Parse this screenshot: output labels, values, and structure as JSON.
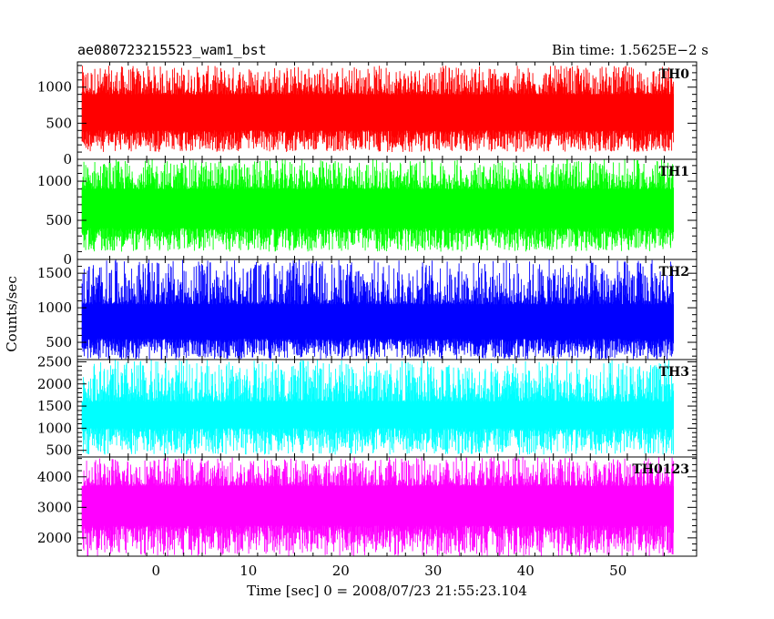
{
  "chart_data": {
    "type": "line",
    "title": "ae080723215523_wam1_bst",
    "subtitle": "Bin time: 1.5625E−2 s",
    "xlabel": "Time [sec] 0 = 2008/07/23 21:55:23.104",
    "ylabel": "Counts/sec",
    "xlim": [
      -8.5,
      58.5
    ],
    "x_ticks": [
      "0",
      "10",
      "20",
      "30",
      "40",
      "50"
    ],
    "x_range_data": [
      -8,
      56
    ],
    "panels": [
      {
        "name": "TH0",
        "color": "#ff0000",
        "ylim": [
          0,
          1350
        ],
        "yticks": [
          0,
          500,
          1000
        ],
        "ytick_labels": [
          "0",
          "500",
          "1000"
        ],
        "data_range": [
          100,
          1300
        ],
        "data_core": [
          400,
          900
        ]
      },
      {
        "name": "TH1",
        "color": "#00ff00",
        "ylim": [
          0,
          1280
        ],
        "yticks": [
          0,
          500,
          1000
        ],
        "ytick_labels": [
          "0",
          "500",
          "1000"
        ],
        "data_range": [
          100,
          1280
        ],
        "data_core": [
          400,
          900
        ]
      },
      {
        "name": "TH2",
        "color": "#0000ff",
        "ylim": [
          250,
          1700
        ],
        "yticks": [
          500,
          1000,
          1500
        ],
        "ytick_labels": [
          "500",
          "1000",
          "1500"
        ],
        "data_range": [
          250,
          1700
        ],
        "data_core": [
          550,
          1050
        ]
      },
      {
        "name": "TH3",
        "color": "#00ffff",
        "ylim": [
          350,
          2550
        ],
        "yticks": [
          500,
          1000,
          1500,
          2000,
          2500
        ],
        "ytick_labels": [
          "500",
          "1000",
          "1500",
          "2000",
          "2500"
        ],
        "data_range": [
          400,
          2550
        ],
        "data_core": [
          1000,
          1600
        ]
      },
      {
        "name": "TH0123",
        "color": "#ff00ff",
        "ylim": [
          1400,
          4650
        ],
        "yticks": [
          2000,
          3000,
          4000
        ],
        "ytick_labels": [
          "2000",
          "3000",
          "4000"
        ],
        "data_range": [
          1400,
          4650
        ],
        "data_core": [
          2400,
          3700
        ]
      }
    ],
    "grid": false,
    "legend": "none"
  }
}
